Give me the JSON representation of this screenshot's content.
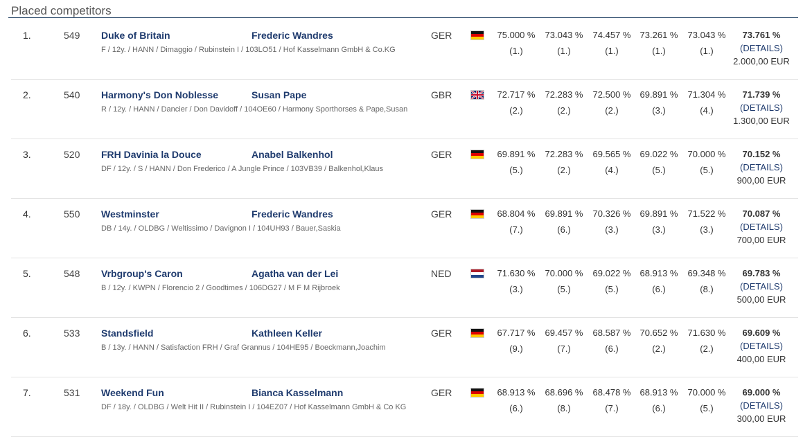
{
  "section_title": "Placed competitors",
  "competitors": [
    {
      "rank": "1.",
      "number": "549",
      "horse": "Duke of Britain",
      "rider": "Frederic Wandres",
      "info": "F / 12y. / HANN / Dimaggio / Rubinstein I / 103LO51 / Hof Kasselmann GmbH & Co.KG",
      "nation": "GER",
      "flag": "ger",
      "scores": [
        {
          "pct": "75.000 %",
          "pl": "(1.)"
        },
        {
          "pct": "73.043 %",
          "pl": "(1.)"
        },
        {
          "pct": "74.457 %",
          "pl": "(1.)"
        },
        {
          "pct": "73.261 %",
          "pl": "(1.)"
        },
        {
          "pct": "73.043 %",
          "pl": "(1.)"
        }
      ],
      "total": "73.761 %",
      "details": "(DETAILS)",
      "prize": "2.000,00 EUR"
    },
    {
      "rank": "2.",
      "number": "540",
      "horse": "Harmony's Don Noblesse",
      "rider": "Susan Pape",
      "info": "R / 12y. / HANN / Dancier / Don Davidoff / 104OE60 / Harmony Sporthorses & Pape,Susan",
      "nation": "GBR",
      "flag": "gbr",
      "scores": [
        {
          "pct": "72.717 %",
          "pl": "(2.)"
        },
        {
          "pct": "72.283 %",
          "pl": "(2.)"
        },
        {
          "pct": "72.500 %",
          "pl": "(2.)"
        },
        {
          "pct": "69.891 %",
          "pl": "(3.)"
        },
        {
          "pct": "71.304 %",
          "pl": "(4.)"
        }
      ],
      "total": "71.739 %",
      "details": "(DETAILS)",
      "prize": "1.300,00 EUR"
    },
    {
      "rank": "3.",
      "number": "520",
      "horse": "FRH Davinia la Douce",
      "rider": "Anabel Balkenhol",
      "info": "DF / 12y. / S / HANN / Don Frederico / A Jungle Prince / 103VB39 / Balkenhol,Klaus",
      "nation": "GER",
      "flag": "ger",
      "scores": [
        {
          "pct": "69.891 %",
          "pl": "(5.)"
        },
        {
          "pct": "72.283 %",
          "pl": "(2.)"
        },
        {
          "pct": "69.565 %",
          "pl": "(4.)"
        },
        {
          "pct": "69.022 %",
          "pl": "(5.)"
        },
        {
          "pct": "70.000 %",
          "pl": "(5.)"
        }
      ],
      "total": "70.152 %",
      "details": "(DETAILS)",
      "prize": "900,00 EUR"
    },
    {
      "rank": "4.",
      "number": "550",
      "horse": "Westminster",
      "rider": "Frederic Wandres",
      "info": "DB / 14y. / OLDBG / Weltissimo / Davignon I / 104UH93 / Bauer,Saskia",
      "nation": "GER",
      "flag": "ger",
      "scores": [
        {
          "pct": "68.804 %",
          "pl": "(7.)"
        },
        {
          "pct": "69.891 %",
          "pl": "(6.)"
        },
        {
          "pct": "70.326 %",
          "pl": "(3.)"
        },
        {
          "pct": "69.891 %",
          "pl": "(3.)"
        },
        {
          "pct": "71.522 %",
          "pl": "(3.)"
        }
      ],
      "total": "70.087 %",
      "details": "(DETAILS)",
      "prize": "700,00 EUR"
    },
    {
      "rank": "5.",
      "number": "548",
      "horse": "Vrbgroup's Caron",
      "rider": "Agatha van der Lei",
      "info": "B / 12y. / KWPN / Florencio 2 / Goodtimes / 106DG27 / M F M Rijbroek",
      "nation": "NED",
      "flag": "ned",
      "scores": [
        {
          "pct": "71.630 %",
          "pl": "(3.)"
        },
        {
          "pct": "70.000 %",
          "pl": "(5.)"
        },
        {
          "pct": "69.022 %",
          "pl": "(5.)"
        },
        {
          "pct": "68.913 %",
          "pl": "(6.)"
        },
        {
          "pct": "69.348 %",
          "pl": "(8.)"
        }
      ],
      "total": "69.783 %",
      "details": "(DETAILS)",
      "prize": "500,00 EUR"
    },
    {
      "rank": "6.",
      "number": "533",
      "horse": "Standsfield",
      "rider": "Kathleen Keller",
      "info": "B / 13y. / HANN / Satisfaction FRH / Graf Grannus / 104HE95 / Boeckmann,Joachim",
      "nation": "GER",
      "flag": "ger",
      "scores": [
        {
          "pct": "67.717 %",
          "pl": "(9.)"
        },
        {
          "pct": "69.457 %",
          "pl": "(7.)"
        },
        {
          "pct": "68.587 %",
          "pl": "(6.)"
        },
        {
          "pct": "70.652 %",
          "pl": "(2.)"
        },
        {
          "pct": "71.630 %",
          "pl": "(2.)"
        }
      ],
      "total": "69.609 %",
      "details": "(DETAILS)",
      "prize": "400,00 EUR"
    },
    {
      "rank": "7.",
      "number": "531",
      "horse": "Weekend Fun",
      "rider": "Bianca Kasselmann",
      "info": "DF / 18y. / OLDBG / Welt Hit II / Rubinstein I / 104EZ07 / Hof Kasselmann GmbH & Co KG",
      "nation": "GER",
      "flag": "ger",
      "scores": [
        {
          "pct": "68.913 %",
          "pl": "(6.)"
        },
        {
          "pct": "68.696 %",
          "pl": "(8.)"
        },
        {
          "pct": "68.478 %",
          "pl": "(7.)"
        },
        {
          "pct": "68.913 %",
          "pl": "(6.)"
        },
        {
          "pct": "70.000 %",
          "pl": "(5.)"
        }
      ],
      "total": "69.000 %",
      "details": "(DETAILS)",
      "prize": "300,00 EUR"
    }
  ]
}
